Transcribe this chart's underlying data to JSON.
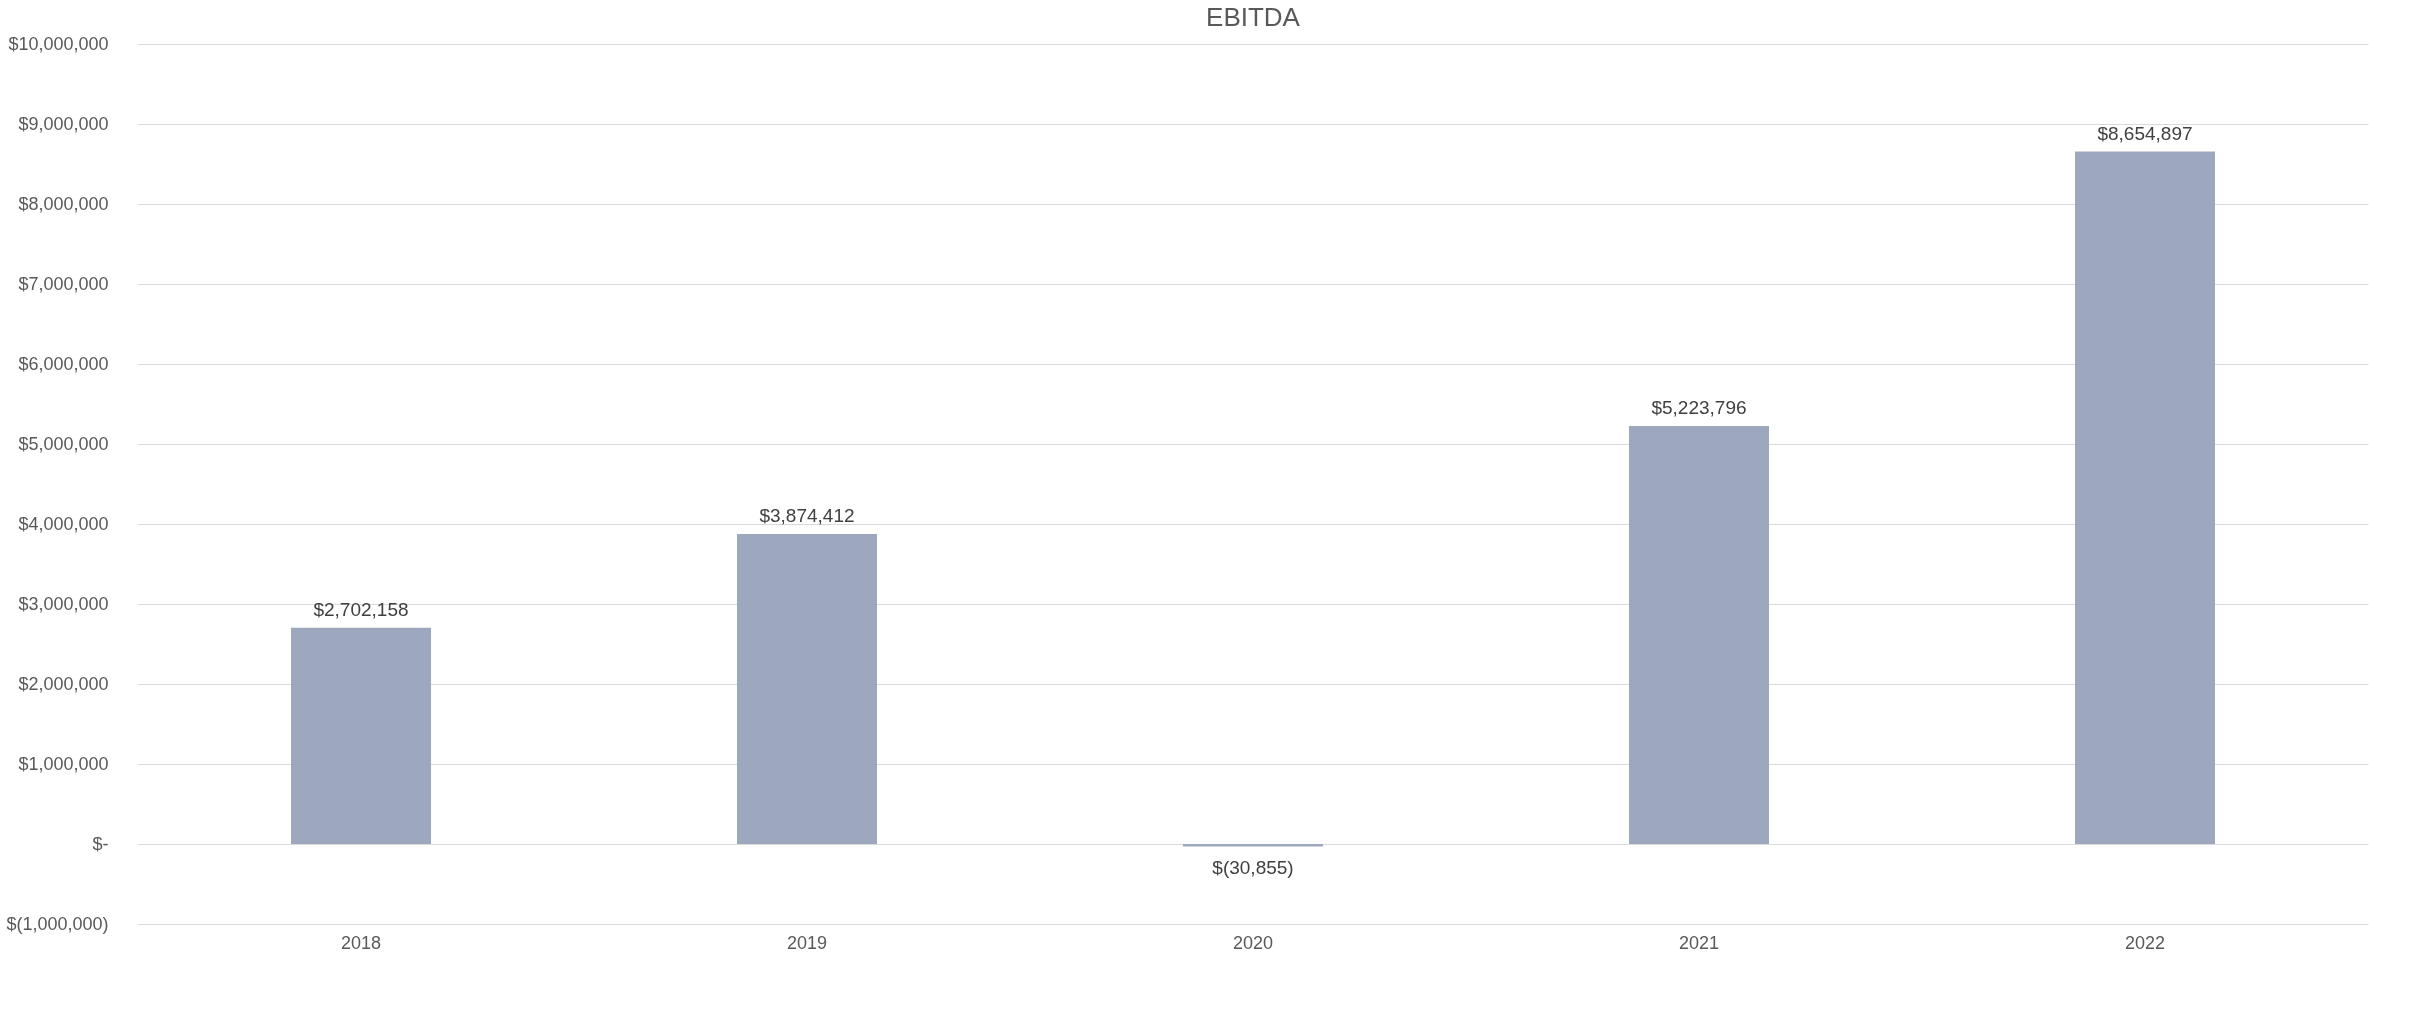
{
  "chart_data": {
    "type": "bar",
    "title": "EBITDA",
    "categories": [
      "2018",
      "2019",
      "2020",
      "2021",
      "2022"
    ],
    "values": [
      2702158,
      3874412,
      -30855,
      5223796,
      8654897
    ],
    "value_labels": [
      "$2,702,158",
      "$3,874,412",
      "$(30,855)",
      "$5,223,796",
      "$8,654,897"
    ],
    "color": "#9da8bf",
    "ylim": [
      -1000000,
      10000000
    ],
    "yticks": [
      {
        "value": -1000000,
        "label": "$(1,000,000)"
      },
      {
        "value": 0,
        "label": "$-"
      },
      {
        "value": 1000000,
        "label": "$1,000,000"
      },
      {
        "value": 2000000,
        "label": "$2,000,000"
      },
      {
        "value": 3000000,
        "label": "$3,000,000"
      },
      {
        "value": 4000000,
        "label": "$4,000,000"
      },
      {
        "value": 5000000,
        "label": "$5,000,000"
      },
      {
        "value": 6000000,
        "label": "$6,000,000"
      },
      {
        "value": 7000000,
        "label": "$7,000,000"
      },
      {
        "value": 8000000,
        "label": "$8,000,000"
      },
      {
        "value": 9000000,
        "label": "$9,000,000"
      },
      {
        "value": 10000000,
        "label": "$10,000,000"
      }
    ],
    "grid": true
  }
}
